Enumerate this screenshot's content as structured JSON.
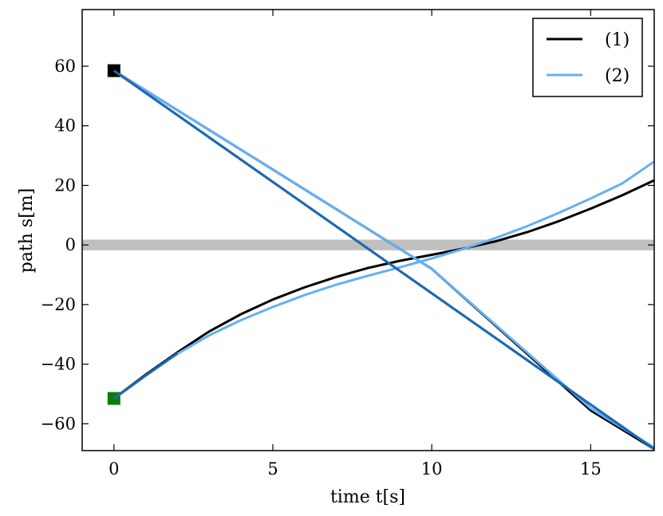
{
  "chart_data": {
    "type": "line",
    "xlabel": "time t[s]",
    "ylabel": "path s[m]",
    "xlim": [
      -1,
      17
    ],
    "ylim": [
      -69,
      79
    ],
    "x_ticks": [
      0,
      5,
      10,
      15
    ],
    "x_tick_labels": [
      "0",
      "5",
      "10",
      "15"
    ],
    "y_ticks": [
      -60,
      -40,
      -20,
      0,
      20,
      40,
      60
    ],
    "y_tick_labels": [
      "−60",
      "−40",
      "−20",
      "0",
      "20",
      "40",
      "60"
    ],
    "grid": false,
    "legend": {
      "placement": "top-right",
      "entries": [
        "(1)",
        "(2)"
      ]
    },
    "colors": {
      "series1": "#000000",
      "series2": "#64b0f4",
      "shared_line": "#1d69b2",
      "band": "#c0c0c0",
      "marker_start_top": "#000000",
      "marker_start_bottom": "#0a7d0a"
    },
    "band": {
      "y_from": -1.8,
      "y_to": 1.8
    },
    "markers": [
      {
        "name": "start-marker-top",
        "x": 0,
        "y": 58.5
      },
      {
        "name": "start-marker-bottom",
        "x": 0,
        "y": -51.5
      }
    ],
    "series": [
      {
        "name": "(1)",
        "group": "rising",
        "x": [
          0,
          1,
          2,
          3,
          4,
          5,
          6,
          7,
          8,
          9,
          10,
          11,
          12,
          13,
          14,
          15,
          16,
          17
        ],
        "y": [
          -51.5,
          -43.5,
          -36,
          -29,
          -23.2,
          -18.3,
          -14.2,
          -10.7,
          -7.7,
          -5.3,
          -3.3,
          -1.2,
          1.2,
          4.3,
          8,
          12.2,
          16.7,
          21.7
        ]
      },
      {
        "name": "(1)",
        "group": "falling",
        "x": [
          0,
          5,
          10,
          15,
          17
        ],
        "y": [
          58.5,
          25.3,
          -8,
          -55.5,
          -68.5
        ]
      },
      {
        "name": "(2)",
        "group": "rising",
        "x": [
          0,
          1,
          2,
          3,
          4,
          5,
          6,
          7,
          8,
          9,
          10,
          11,
          12,
          13,
          14,
          15,
          16,
          17
        ],
        "y": [
          -51.5,
          -43.8,
          -36.5,
          -30.3,
          -25.2,
          -20.8,
          -16.8,
          -13.3,
          -10.3,
          -7.5,
          -4.5,
          -1.3,
          2.3,
          6.3,
          10.8,
          15.6,
          20.7,
          28
        ]
      },
      {
        "name": "(2)",
        "group": "falling",
        "x": [
          0,
          5,
          10,
          15,
          17
        ],
        "y": [
          58.5,
          25.3,
          -8,
          -54.8,
          -68
        ]
      },
      {
        "name": "",
        "group": "shared",
        "x": [
          0,
          17
        ],
        "y": [
          58.5,
          -68.5
        ]
      },
      {
        "name": "",
        "group": "shared",
        "x": [
          0,
          1,
          2
        ],
        "y": [
          -51.5,
          -43.8,
          -36.3
        ]
      }
    ]
  }
}
